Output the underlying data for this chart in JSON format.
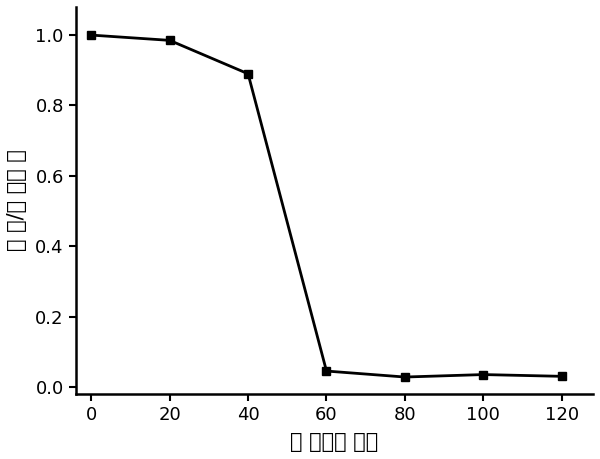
{
  "x": [
    0,
    20,
    40,
    60,
    80,
    100,
    120
  ],
  "y": [
    1.0,
    0.985,
    0.89,
    0.045,
    0.028,
    0.035,
    0.03
  ],
  "line_color": "#000000",
  "marker": "s",
  "marker_size": 6,
  "line_width": 2.0,
  "xlabel": "时 间（分 钟）",
  "ylabel": "浓 度/原 始浓 度",
  "xlim": [
    -4,
    128
  ],
  "ylim": [
    -0.02,
    1.08
  ],
  "xticks": [
    0,
    20,
    40,
    60,
    80,
    100,
    120
  ],
  "yticks": [
    0.0,
    0.2,
    0.4,
    0.6,
    0.8,
    1.0
  ],
  "xlabel_fontsize": 15,
  "ylabel_fontsize": 15,
  "tick_fontsize": 13,
  "background_color": "#ffffff",
  "spine_linewidth": 1.8
}
